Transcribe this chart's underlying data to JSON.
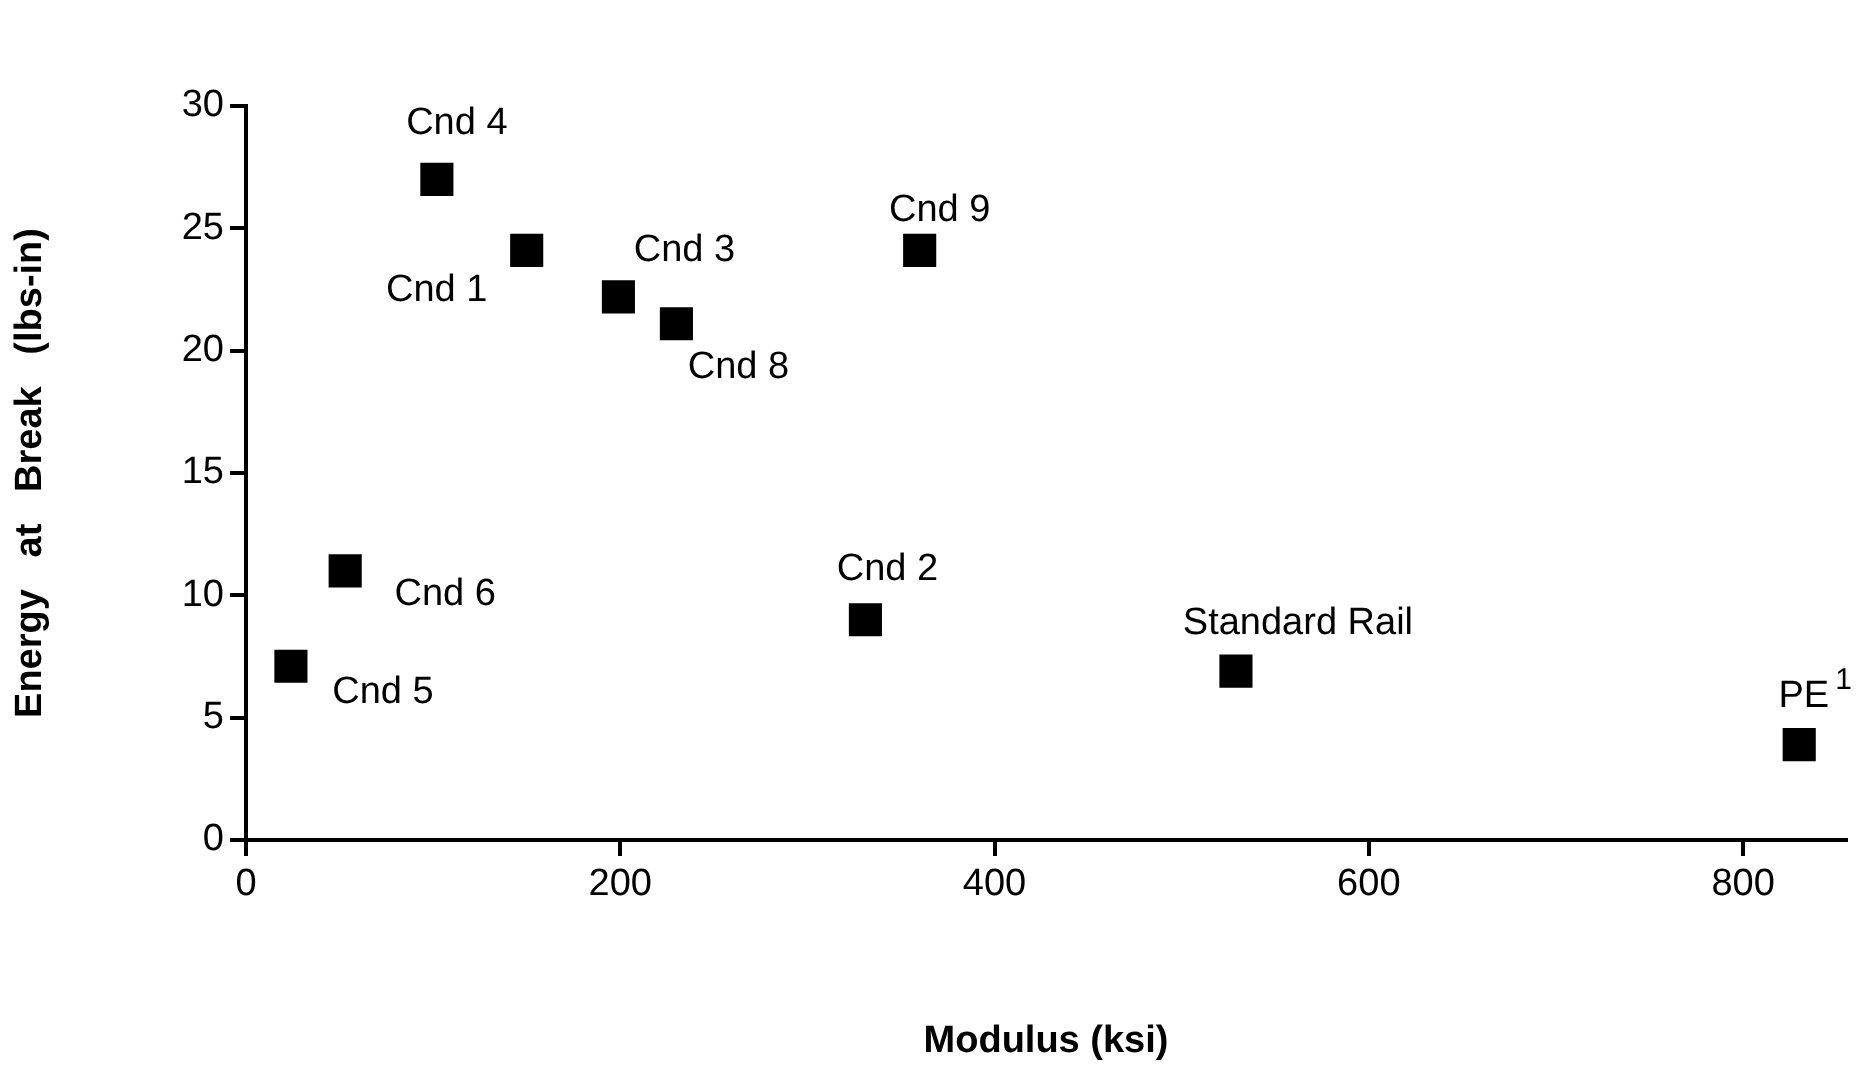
{
  "chart_data": {
    "type": "scatter",
    "xlabel": "Modulus (ksi)",
    "ylabel": "Energy   at   Break   (lbs-in)",
    "x": [
      102,
      150,
      199,
      230,
      360,
      53,
      24,
      331,
      529,
      830
    ],
    "values": [
      27,
      24.1,
      22.2,
      21.1,
      24.1,
      11,
      7.1,
      9,
      6.9,
      3.9
    ],
    "color": "#000000",
    "marker": "square",
    "grid": false,
    "xlim": [
      0,
      855
    ],
    "xticks": [
      0,
      200,
      400,
      600,
      800
    ],
    "ylim": [
      0,
      30
    ],
    "yticks": [
      0,
      5,
      10,
      15,
      20,
      25,
      30
    ],
    "annotations": [
      {
        "text": "Cnd 4",
        "x": 102,
        "y": 27
      },
      {
        "text": "Cnd 1",
        "x": 150,
        "y": 24.1
      },
      {
        "text": "Cnd 3",
        "x": 199,
        "y": 22.2
      },
      {
        "text": "Cnd 8",
        "x": 230,
        "y": 21.1
      },
      {
        "text": "Cnd 9",
        "x": 360,
        "y": 24.1
      },
      {
        "text": "Cnd 6",
        "x": 53,
        "y": 11
      },
      {
        "text": "Cnd 5",
        "x": 24,
        "y": 7.1
      },
      {
        "text": "Cnd 2",
        "x": 331,
        "y": 9
      },
      {
        "text": "Standard Rail",
        "x": 529,
        "y": 6.9
      },
      {
        "text": "PE$^{1}$",
        "x": 830,
        "y": 3.9
      }
    ]
  }
}
